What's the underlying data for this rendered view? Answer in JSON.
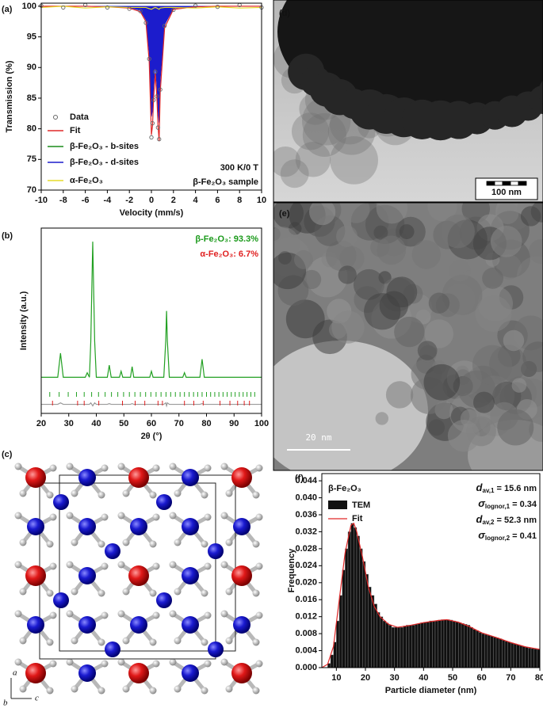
{
  "chart_data": [
    {
      "type": "line",
      "x_label": "Velocity (mm/s)",
      "y_label": "Transmission (%)",
      "xlim": [
        -10,
        10
      ],
      "xticks": [
        -10,
        -8,
        -6,
        -4,
        -2,
        0,
        2,
        4,
        6,
        8,
        10
      ],
      "ylim": [
        70,
        100.5
      ],
      "yticks": [
        70,
        75,
        80,
        85,
        90,
        95,
        100
      ],
      "x": [
        -10,
        -8,
        -6,
        -4,
        -2,
        -1,
        -0.5,
        -0.2,
        0,
        0.1,
        0.2,
        0.35,
        0.5,
        0.6,
        0.7,
        0.8,
        1.2,
        2,
        4,
        6,
        8,
        10
      ],
      "series": [
        {
          "name": "Data",
          "color": "#666666",
          "style": "points",
          "values": [
            100.1,
            99.8,
            100.2,
            99.8,
            99.6,
            99.2,
            97.3,
            91.4,
            78.6,
            80.9,
            84.7,
            89.3,
            85.3,
            80.2,
            78.3,
            86.4,
            96.8,
            99.4,
            100.1,
            99.9,
            100.2,
            99.8
          ]
        },
        {
          "name": "Fit",
          "color": "#e02828",
          "style": "line",
          "values": [
            100,
            100,
            100,
            99.9,
            99.7,
            99.1,
            97.5,
            91,
            79,
            80.5,
            85,
            89,
            85,
            80.5,
            78,
            86,
            96.5,
            99.5,
            99.9,
            100,
            100,
            100
          ]
        },
        {
          "name": "β-Fe₂O₃ - b-sites",
          "color": "#1a8c1a",
          "style": "area",
          "values": [
            100,
            100,
            100,
            100,
            99.9,
            99.6,
            98.5,
            96,
            93.5,
            93.2,
            93.2,
            93.5,
            93.2,
            93.2,
            93.5,
            94,
            98,
            99.7,
            100,
            100,
            100,
            100
          ]
        },
        {
          "name": "β-Fe₂O₃ - d-sites",
          "color": "#1c1ccc",
          "style": "area",
          "values": [
            100,
            100,
            100,
            99.95,
            99.8,
            99.3,
            97.8,
            92.5,
            82,
            83,
            87,
            90.5,
            87,
            83,
            81,
            88,
            97,
            99.7,
            99.95,
            100,
            100,
            100
          ]
        },
        {
          "name": "α-Fe₂O₃",
          "color": "#e6dc28",
          "style": "line",
          "values": [
            99.8,
            100,
            99.7,
            99.9,
            99.8,
            99.8,
            99.8,
            99.6,
            99.5,
            99.6,
            99.7,
            99.8,
            99.7,
            99.6,
            99.5,
            99.7,
            99.8,
            99.8,
            99.7,
            99.9,
            99.7,
            99.8
          ]
        }
      ],
      "area_base": 100,
      "annotations": [
        {
          "text": "300 K/0 T",
          "color": "#111111"
        },
        {
          "text": "β-Fe₂O₃ sample",
          "color": "#111111"
        }
      ]
    },
    {
      "type": "line",
      "x_label": "2θ (°)",
      "y_label": "Intensity (a.u.)",
      "xlim": [
        20,
        100
      ],
      "xticks": [
        20,
        30,
        40,
        50,
        60,
        70,
        80,
        90,
        100
      ],
      "ylim": [
        -18,
        105
      ],
      "x": [
        20,
        26,
        27,
        28,
        33,
        36,
        36.7,
        37.5,
        38,
        38.7,
        39.4,
        40,
        44,
        44.7,
        45.4,
        48.4,
        49,
        49.6,
        52.4,
        53,
        53.6,
        59.4,
        60,
        60.6,
        64.5,
        65.2,
        65.5,
        65.8,
        66.5,
        71.4,
        72,
        72.6,
        77.6,
        78.4,
        79.2,
        85,
        90,
        100
      ],
      "series": [
        {
          "color": "#22a022",
          "style": "line",
          "values": [
            6,
            6,
            22,
            6,
            6,
            6,
            9,
            6,
            30,
            96,
            30,
            6,
            6,
            14,
            6,
            6,
            10,
            6,
            6,
            13,
            6,
            6,
            10,
            6,
            6,
            30,
            50,
            30,
            6,
            6,
            9,
            6,
            6,
            18,
            6,
            6,
            6,
            6
          ]
        },
        {
          "color": "#9a9a9a",
          "style": "line",
          "values": [
            -12,
            -12,
            -11,
            -12,
            -12,
            -12,
            -12,
            -12,
            -11,
            -13,
            -11,
            -12,
            -12,
            -11.5,
            -12,
            -12,
            -12,
            -12,
            -12,
            -11.5,
            -12,
            -12,
            -12,
            -12,
            -12,
            -11,
            -13,
            -11,
            -12,
            -12,
            -12,
            -12,
            -12,
            -11.5,
            -12,
            -12,
            -12,
            -12
          ]
        }
      ],
      "reflections": [
        {
          "color": "#22a022",
          "x": [
            23.1,
            26.5,
            29.8,
            32.8,
            35.6,
            38.3,
            40.8,
            43.2,
            45.5,
            47.8,
            49.9,
            52,
            54,
            56,
            57.9,
            59.8,
            61.7,
            63.5,
            65.3,
            67,
            68.7,
            70.4,
            72,
            73.7,
            75.3,
            76.8,
            78.4,
            80,
            81.5,
            83,
            84.5,
            86,
            87.5,
            89,
            90.4,
            91.9,
            93.3,
            94.7,
            96.1,
            97.5
          ]
        },
        {
          "color": "#e02020",
          "x": [
            24.1,
            33.2,
            35.6,
            40.9,
            49.5,
            54.1,
            57.6,
            62.4,
            64,
            72,
            75.4,
            78.8,
            84.9,
            88.5,
            91.3,
            93.7,
            95.6
          ]
        }
      ],
      "annotations": [
        {
          "text": "β-Fe₂O₃: 93.3%",
          "color": "#1a9a1a"
        },
        {
          "text": "α-Fe₂O₃: 6.7%",
          "color": "#e02020"
        }
      ]
    },
    {
      "type": "histogram",
      "title": "β-Fe₂O₃",
      "x_label": "Particle diameter (nm)",
      "y_label": "Frequency",
      "xlim": [
        5,
        80
      ],
      "xticks": [
        10,
        20,
        30,
        40,
        50,
        60,
        70,
        80
      ],
      "ylim": [
        0,
        0.0457
      ],
      "yticks": [
        {
          "value": 0,
          "label": "0.000"
        },
        0.004,
        0.008,
        0.012,
        0.016,
        {
          "value": 0.02,
          "label": "0.020"
        },
        0.024,
        0.028,
        0.032,
        0.036,
        {
          "value": 0.04,
          "label": "0.040"
        },
        0.044
      ],
      "name": "TEM",
      "color": "#111111",
      "bins": [
        7,
        8,
        9,
        10,
        11,
        12,
        13,
        14,
        15,
        16,
        17,
        18,
        19,
        20,
        21,
        22,
        23,
        24,
        25,
        26,
        27,
        28,
        29,
        30,
        31,
        32,
        33,
        34,
        35,
        36,
        37,
        38,
        39,
        40,
        41,
        42,
        43,
        44,
        45,
        46,
        47,
        48,
        49,
        50,
        51,
        52,
        53,
        54,
        55,
        56,
        57,
        58,
        59,
        60,
        61,
        62,
        63,
        64,
        65,
        66,
        67,
        68,
        69,
        70,
        71,
        72,
        73,
        74,
        75,
        76,
        77,
        78,
        79,
        80
      ],
      "values": [
        0.001,
        0.003,
        0.006,
        0.011,
        0.017,
        0.023,
        0.028,
        0.032,
        0.034,
        0.033,
        0.031,
        0.028,
        0.025,
        0.022,
        0.019,
        0.017,
        0.015,
        0.013,
        0.012,
        0.011,
        0.0105,
        0.01,
        0.0095,
        0.0095,
        0.0095,
        0.0095,
        0.0098,
        0.01,
        0.01,
        0.01,
        0.0102,
        0.0104,
        0.0106,
        0.0107,
        0.0108,
        0.011,
        0.011,
        0.011,
        0.0112,
        0.0113,
        0.0113,
        0.0113,
        0.0112,
        0.011,
        0.0108,
        0.0106,
        0.0104,
        0.0102,
        0.01,
        0.0095,
        0.009,
        0.0087,
        0.0083,
        0.008,
        0.0078,
        0.0076,
        0.0074,
        0.0072,
        0.007,
        0.0068,
        0.0065,
        0.0062,
        0.006,
        0.0058,
        0.0056,
        0.0054,
        0.0052,
        0.005,
        0.0048,
        0.0046,
        0.0045,
        0.0044,
        0.0043
      ],
      "fit": {
        "name": "Fit",
        "color": "#e02828",
        "x": [
          5,
          7,
          9,
          11,
          13,
          15,
          16,
          17,
          19,
          21,
          23,
          25,
          28,
          31,
          35,
          40,
          45,
          48,
          52,
          56,
          60,
          65,
          70,
          75,
          80
        ],
        "values": [
          0,
          0.0008,
          0.005,
          0.016,
          0.027,
          0.0335,
          0.034,
          0.032,
          0.026,
          0.019,
          0.0145,
          0.012,
          0.0102,
          0.0095,
          0.0099,
          0.0106,
          0.0111,
          0.0113,
          0.0107,
          0.0096,
          0.0082,
          0.0071,
          0.0059,
          0.0049,
          0.0043
        ]
      },
      "stats": [
        {
          "symbol": "d",
          "sub": "av,1",
          "text": " = 15.6 nm"
        },
        {
          "symbol": "σ",
          "sub": "lognor,1",
          "text": " = 0.34"
        },
        {
          "symbol": "d",
          "sub": "av,2",
          "text": " = 52.3 nm"
        },
        {
          "symbol": "σ",
          "sub": "lognor,2",
          "text": " = 0.41"
        }
      ]
    }
  ],
  "panels": {
    "labels": [
      "(a)",
      "(b)",
      "(c)",
      "(d)",
      "(e)",
      "(f)"
    ],
    "scale_bar_d": "100 nm",
    "scale_bar_e": "20 nm",
    "crystal_axes": [
      "a",
      "b",
      "c"
    ]
  }
}
